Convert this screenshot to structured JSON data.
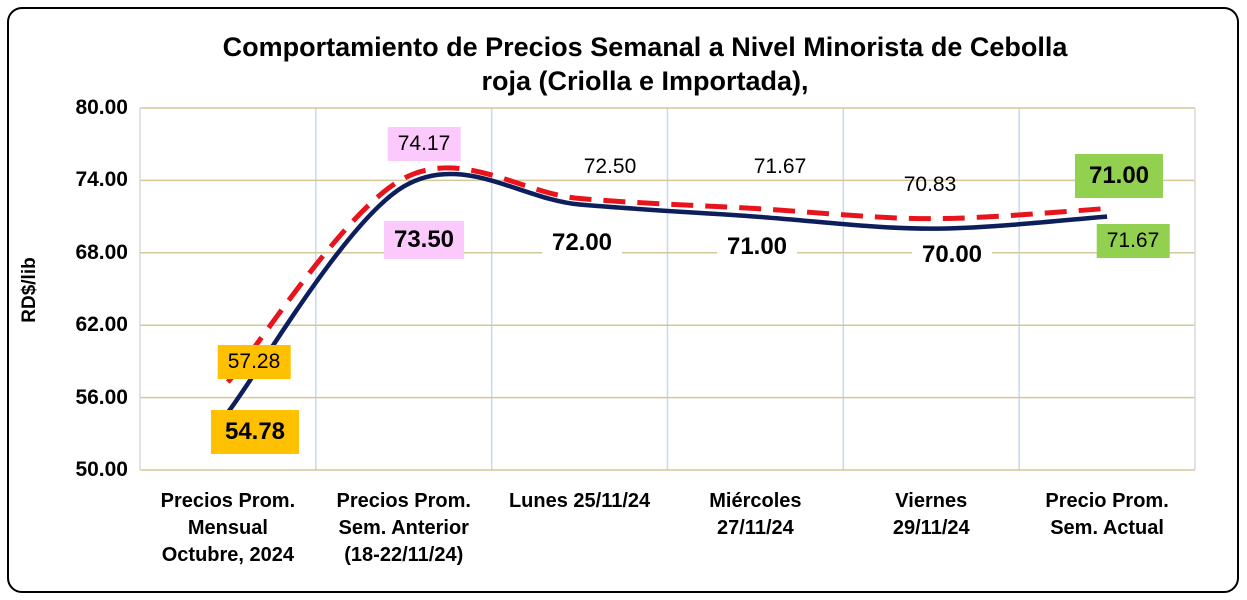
{
  "chart_data": {
    "type": "line",
    "title": "Comportamiento de Precios Semanal a Nivel Minorista de Cebolla\nroja (Criolla e Importada),",
    "y_label": "RD$/lib",
    "categories": [
      "Precios Prom.\nMensual\nOctubre, 2024",
      "Precios Prom.\nSem. Anterior\n(18-22/11/24)",
      "Lunes 25/11/24",
      "Miércoles\n27/11/24",
      "Viernes\n29/11/24",
      "Precio Prom.\nSem. Actual"
    ],
    "series": [
      {
        "color": "#0d1e5c",
        "dash": false,
        "values": [
          54.78,
          73.5,
          72,
          71,
          70,
          71
        ],
        "value_labels": [
          "54.78",
          "73.50",
          "72.00",
          "71.00",
          "70.00",
          "71.00"
        ]
      },
      {
        "color": "#e8141c",
        "dash": true,
        "values": [
          57.28,
          74.17,
          72.5,
          71.67,
          70.83,
          71.67
        ],
        "value_labels": [
          "57.28",
          "74.17",
          "72.50",
          "71.67",
          "70.83",
          "71.67"
        ]
      }
    ],
    "ylim": [
      50,
      80
    ],
    "yticks": [
      {
        "value": 50,
        "label": "50.00"
      },
      {
        "value": 56,
        "label": "56.00"
      },
      {
        "value": 62,
        "label": "62.00"
      },
      {
        "value": 68,
        "label": "68.00"
      },
      {
        "value": 74,
        "label": "74.00"
      },
      {
        "value": 80,
        "label": "80.00"
      }
    ],
    "grid": true
  }
}
